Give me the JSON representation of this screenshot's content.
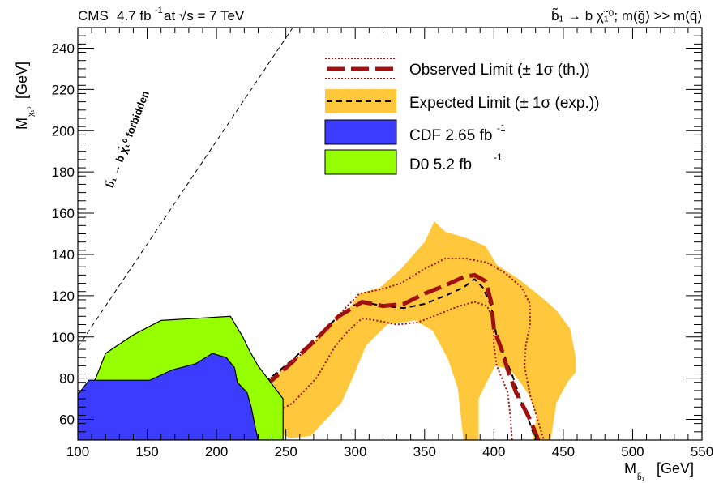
{
  "header": {
    "left_experiment": "CMS",
    "left_lumi": "4.7 fb",
    "left_lumi_exp": "-1",
    "left_energy": " at √s = 7 TeV",
    "right_process": "b̃₁ → b χ̃₁⁰; m(g̃) >> m(q̃)"
  },
  "chart_data": {
    "type": "line",
    "xlabel": "M",
    "xlabel_sub": "b̃₁",
    "xlabel_unit": "[GeV]",
    "ylabel": "M",
    "ylabel_sub": "χ̃₁⁰",
    "ylabel_unit": "[GeV]",
    "xlim": [
      100,
      550
    ],
    "ylim": [
      50,
      250
    ],
    "xticks": [
      100,
      150,
      200,
      250,
      300,
      350,
      400,
      450,
      500,
      550
    ],
    "yticks": [
      60,
      80,
      100,
      120,
      140,
      160,
      180,
      200,
      220,
      240
    ],
    "legend_position": "top-right",
    "legend": [
      {
        "key": "observed",
        "label": "Observed Limit (± 1σ (th.))"
      },
      {
        "key": "expected",
        "label": "Expected Limit (± 1σ (exp.))"
      },
      {
        "key": "cdf",
        "label": "CDF 2.65 fb",
        "sup": "-1"
      },
      {
        "key": "d0",
        "label": "D0 5.2 fb",
        "sup": "-1"
      }
    ],
    "diagonal_label": "b̃₁ → b χ̃₁⁰ forbidden",
    "colors": {
      "observed": "#a01010",
      "observed_band": "#a01010",
      "expected": "#000000",
      "expected_band": "#ffc83c",
      "cdf": "#3c3cff",
      "d0": "#96ff00"
    },
    "series": [
      {
        "key": "expected_band",
        "points": [
          [
            235,
            72
          ],
          [
            248,
            85
          ],
          [
            263,
            92
          ],
          [
            278,
            104
          ],
          [
            293,
            111
          ],
          [
            303,
            121
          ],
          [
            318,
            124
          ],
          [
            333,
            133
          ],
          [
            350,
            146
          ],
          [
            357,
            156
          ],
          [
            365,
            151
          ],
          [
            380,
            148
          ],
          [
            394,
            144
          ],
          [
            402,
            135
          ],
          [
            418,
            128
          ],
          [
            433,
            120
          ],
          [
            445,
            113
          ],
          [
            455,
            104
          ],
          [
            459,
            90
          ],
          [
            459,
            83
          ],
          [
            453,
            78
          ],
          [
            445,
            68
          ],
          [
            441,
            50
          ],
          [
            428,
            50
          ],
          [
            431,
            62
          ],
          [
            425,
            72
          ],
          [
            419,
            78
          ],
          [
            413,
            83
          ],
          [
            407,
            85
          ],
          [
            401,
            86
          ],
          [
            394,
            77
          ],
          [
            389,
            70
          ],
          [
            389,
            50
          ],
          [
            378,
            50
          ],
          [
            374,
            75
          ],
          [
            367,
            89
          ],
          [
            356,
            103
          ],
          [
            343,
            108
          ],
          [
            323,
            106
          ],
          [
            308,
            96
          ],
          [
            298,
            80
          ],
          [
            290,
            68
          ],
          [
            268,
            52
          ],
          [
            254,
            51
          ],
          [
            249,
            52
          ],
          [
            243,
            56
          ],
          [
            235,
            62
          ]
        ]
      },
      {
        "key": "observed_band_upper",
        "points": [
          [
            235,
            78
          ],
          [
            255,
            88
          ],
          [
            272,
            98
          ],
          [
            290,
            112
          ],
          [
            303,
            121
          ],
          [
            318,
            123
          ],
          [
            333,
            126
          ],
          [
            350,
            133
          ],
          [
            365,
            138
          ],
          [
            380,
            138
          ],
          [
            395,
            136
          ],
          [
            408,
            131
          ],
          [
            420,
            124
          ],
          [
            426,
            116
          ],
          [
            426,
            106
          ],
          [
            423,
            96
          ],
          [
            422,
            86
          ],
          [
            426,
            72
          ],
          [
            436,
            50
          ]
        ]
      },
      {
        "key": "observed_band_lower",
        "points": [
          [
            235,
            60
          ],
          [
            255,
            68
          ],
          [
            272,
            80
          ],
          [
            285,
            95
          ],
          [
            295,
            103
          ],
          [
            305,
            109
          ],
          [
            315,
            108
          ],
          [
            330,
            106
          ],
          [
            345,
            107
          ],
          [
            360,
            111
          ],
          [
            375,
            115
          ],
          [
            386,
            117
          ],
          [
            395,
            115
          ],
          [
            400,
            108
          ],
          [
            400,
            96
          ],
          [
            402,
            86
          ],
          [
            410,
            73
          ],
          [
            412,
            60
          ],
          [
            413,
            50
          ]
        ]
      },
      {
        "key": "observed",
        "points": [
          [
            235,
            76
          ],
          [
            255,
            88
          ],
          [
            272,
            99
          ],
          [
            288,
            110
          ],
          [
            298,
            114
          ],
          [
            305,
            117
          ],
          [
            320,
            115
          ],
          [
            335,
            116
          ],
          [
            350,
            121
          ],
          [
            365,
            125
          ],
          [
            378,
            129
          ],
          [
            386,
            130
          ],
          [
            394,
            127
          ],
          [
            398,
            117
          ],
          [
            400,
            104
          ],
          [
            406,
            93
          ],
          [
            410,
            84
          ],
          [
            416,
            73
          ],
          [
            426,
            60
          ],
          [
            432,
            50
          ]
        ]
      },
      {
        "key": "expected",
        "points": [
          [
            235,
            78
          ],
          [
            255,
            89
          ],
          [
            272,
            100
          ],
          [
            288,
            110
          ],
          [
            298,
            115
          ],
          [
            305,
            117
          ],
          [
            320,
            115
          ],
          [
            335,
            114
          ],
          [
            350,
            116
          ],
          [
            365,
            120
          ],
          [
            378,
            124
          ],
          [
            386,
            128
          ],
          [
            392,
            124
          ],
          [
            398,
            115
          ],
          [
            402,
            100
          ],
          [
            408,
            90
          ],
          [
            414,
            80
          ],
          [
            420,
            68
          ],
          [
            426,
            58
          ],
          [
            430,
            50
          ]
        ]
      },
      {
        "key": "d0",
        "points": [
          [
            100,
            50
          ],
          [
            100,
            65
          ],
          [
            113,
            80
          ],
          [
            120,
            92
          ],
          [
            140,
            101
          ],
          [
            160,
            108
          ],
          [
            210,
            110
          ],
          [
            219,
            100
          ],
          [
            224,
            93
          ],
          [
            230,
            86
          ],
          [
            248,
            70
          ],
          [
            248,
            50
          ]
        ]
      },
      {
        "key": "cdf",
        "points": [
          [
            100,
            50
          ],
          [
            100,
            72
          ],
          [
            108,
            79
          ],
          [
            152,
            79
          ],
          [
            168,
            84
          ],
          [
            185,
            87
          ],
          [
            197,
            92
          ],
          [
            207,
            90
          ],
          [
            213,
            85
          ],
          [
            215,
            78
          ],
          [
            222,
            73
          ],
          [
            225,
            66
          ],
          [
            228,
            56
          ],
          [
            230,
            50
          ]
        ]
      }
    ]
  }
}
